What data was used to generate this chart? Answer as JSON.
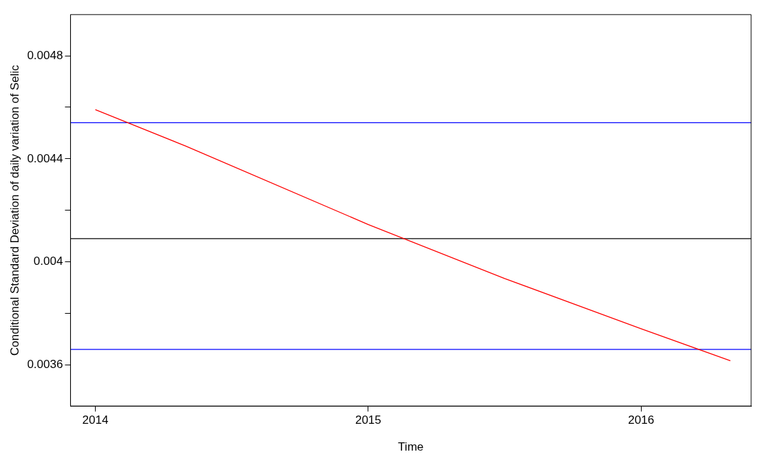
{
  "chart_data": {
    "type": "line",
    "xlabel": "Time",
    "ylabel": "Conditional Standard Deviation of daily variation of Selic",
    "x": [
      2014.0,
      2014.33,
      2015.0,
      2015.5,
      2016.0,
      2016.327
    ],
    "series": [
      {
        "color": "#ff0000",
        "values": [
          0.004591,
          0.00445,
          0.004145,
          0.003935,
          0.00374,
          0.003616
        ]
      }
    ],
    "xlim": [
      2013.909,
      2016.403
    ],
    "xticks": [
      2014,
      2015,
      2016
    ],
    "ylim": [
      0.00344,
      0.00496
    ],
    "yticks": [
      0.0036,
      {
        "value": 0.0038,
        "label": null
      },
      0.004,
      {
        "value": 0.0042,
        "label": null
      },
      0.0044,
      {
        "value": 0.0046,
        "label": null
      },
      0.0048
    ],
    "ref_lines": [
      {
        "axis": "y",
        "value": 0.00454,
        "color": "#0000ff"
      },
      {
        "axis": "y",
        "value": 0.00409,
        "color": "#000000"
      },
      {
        "axis": "y",
        "value": 0.00366,
        "color": "#0000ff"
      }
    ],
    "grid": false,
    "legend": false,
    "marker": "none"
  }
}
